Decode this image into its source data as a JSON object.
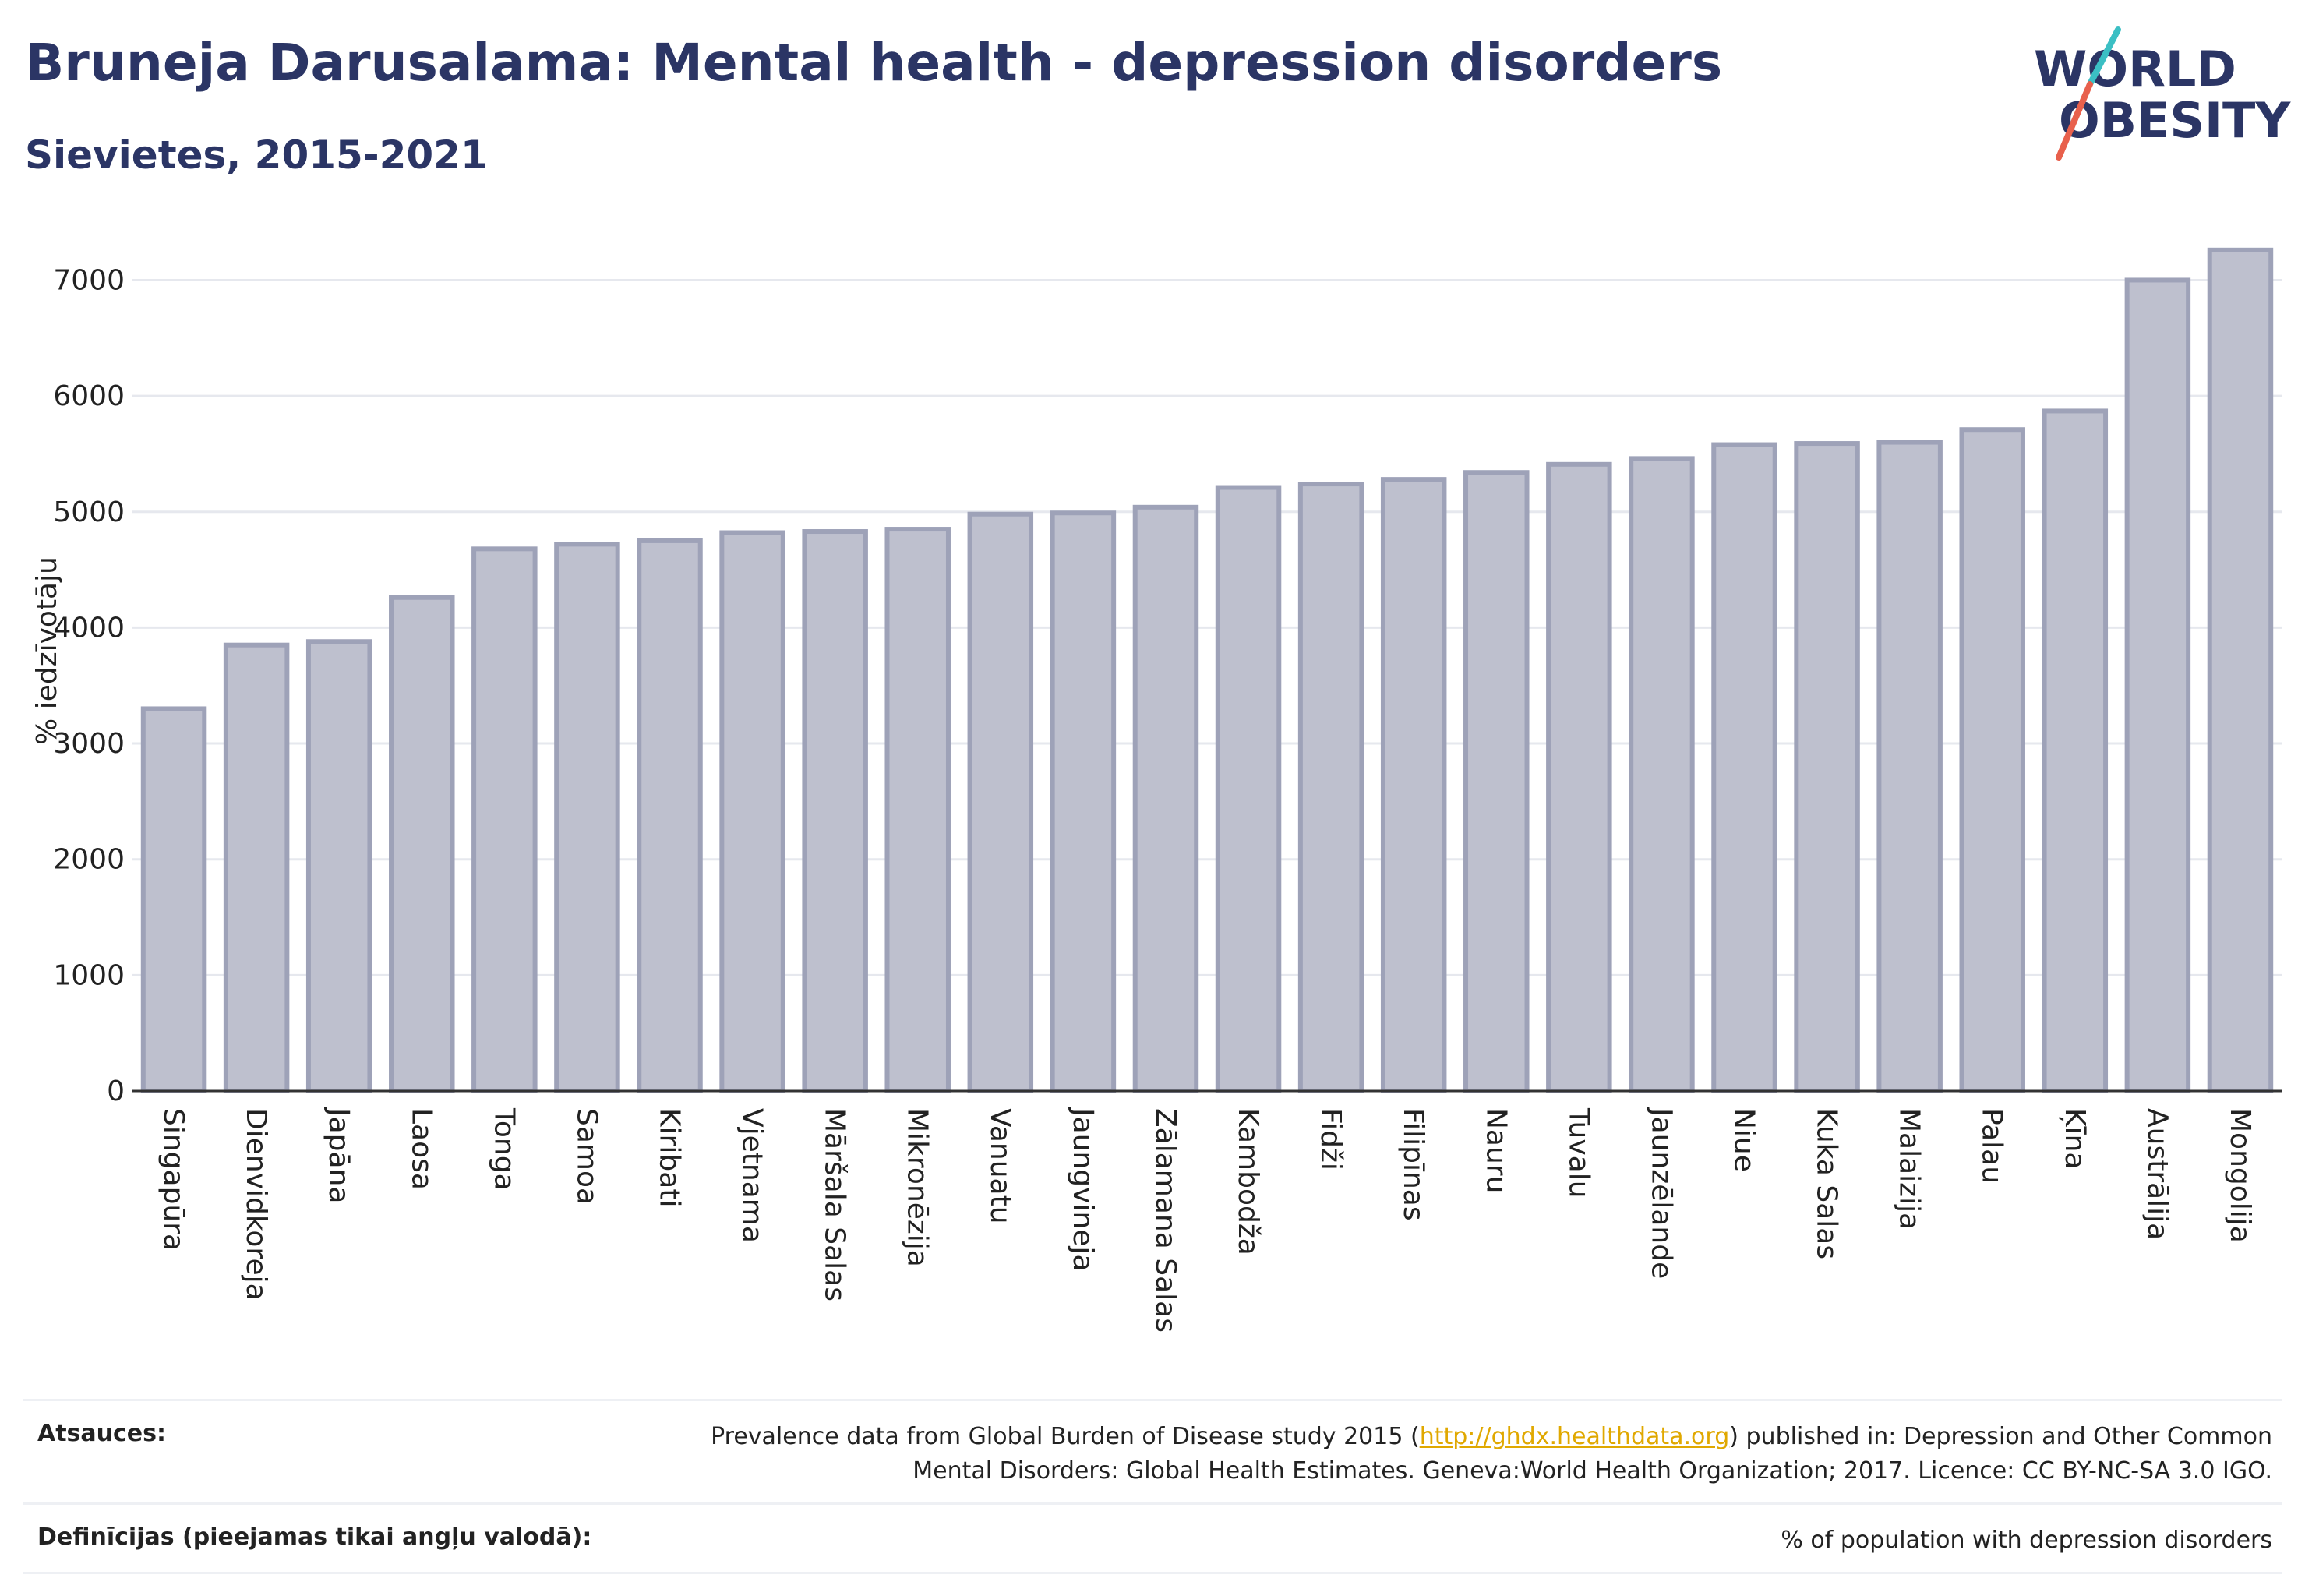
{
  "header": {
    "title": "Bruneja Darusalama: Mental health - depression disorders",
    "subtitle": "Sievietes, 2015-2021"
  },
  "logo": {
    "line1": "WORLD",
    "line2": "OBESITY"
  },
  "colors": {
    "bar_fill": "#bec0ce",
    "bar_stroke": "#9ea2b8",
    "title": "#2b3565",
    "logo_teal": "#3bbfc4",
    "logo_red": "#e8604c",
    "link": "#e0a800"
  },
  "chart_data": {
    "type": "bar",
    "ylabel": "% iedzīvotāju",
    "ylim": [
      0,
      7400
    ],
    "yticks": [
      0,
      1000,
      2000,
      3000,
      4000,
      5000,
      6000,
      7000
    ],
    "grid": true,
    "categories": [
      "Singapūra",
      "Dienvidkoreja",
      "Japāna",
      "Laosa",
      "Tonga",
      "Samoa",
      "Kiribati",
      "Vjetnama",
      "Māršala Salas",
      "Mikronēzija",
      "Vanuatu",
      "Jaungvineja",
      "Zālamana Salas",
      "Kambodža",
      "Fidži",
      "Filipīnas",
      "Nauru",
      "Tuvalu",
      "Jaunzēlande",
      "Niue",
      "Kuka Salas",
      "Malaizija",
      "Palau",
      "Ķīna",
      "Austrālija",
      "Mongolija"
    ],
    "values": [
      3300,
      3850,
      3880,
      4260,
      4680,
      4720,
      4750,
      4820,
      4830,
      4850,
      4980,
      4990,
      5040,
      5210,
      5240,
      5280,
      5340,
      5410,
      5460,
      5580,
      5590,
      5600,
      5710,
      5870,
      7000,
      7260
    ]
  },
  "footer": {
    "sources_label": "Atsauces:",
    "sources_text_1": "Prevalence data from Global Burden of Disease study 2015 (",
    "sources_link": "http://ghdx.healthdata.org",
    "sources_text_2": ") published in: Depression and Other Common",
    "sources_text_3": "Mental Disorders: Global Health Estimates. Geneva:World Health Organization; 2017. Licence: CC BY-NC-SA 3.0 IGO.",
    "definitions_label": "Definīcijas (pieejamas tikai angļu valodā):",
    "definitions_text": "% of population with depression disorders"
  }
}
